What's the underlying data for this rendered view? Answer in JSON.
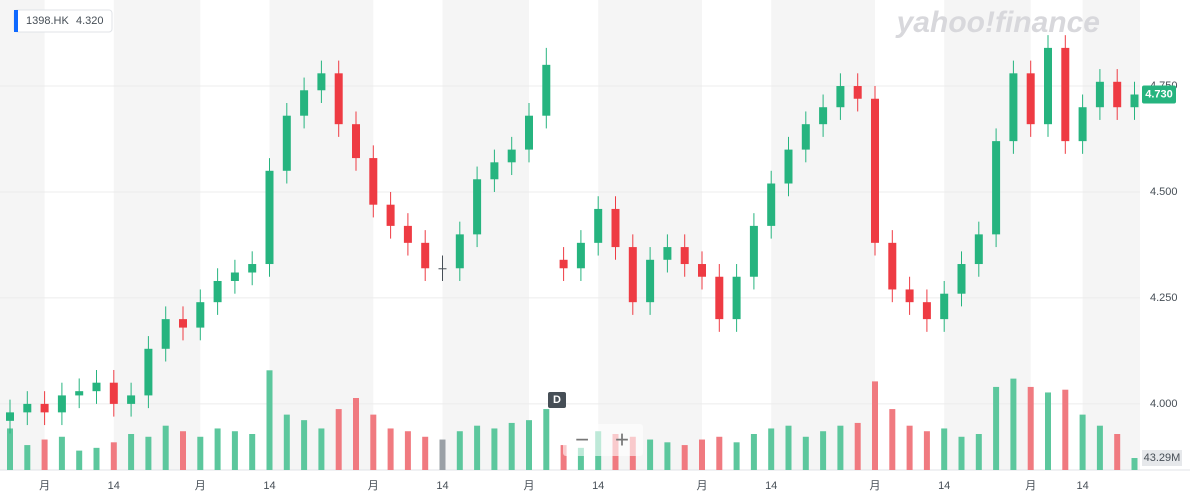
{
  "chart_data": {
    "type": "candlestick",
    "symbol": "1398.HK",
    "quote": {
      "value": 4.32,
      "label": "4.320"
    },
    "logo": "yahoo!finance",
    "interval": "D",
    "zoom_out": "−",
    "zoom_in": "+",
    "categories": [
      null,
      null,
      "月",
      null,
      null,
      null,
      "14",
      null,
      null,
      null,
      null,
      "月",
      null,
      null,
      null,
      "14",
      null,
      null,
      null,
      null,
      null,
      "月",
      null,
      null,
      null,
      "14",
      null,
      null,
      null,
      null,
      "月",
      null,
      null,
      null,
      "14",
      null,
      null,
      null,
      null,
      null,
      "月",
      null,
      null,
      null,
      "14",
      null,
      null,
      null,
      null,
      null,
      "月",
      null,
      null,
      null,
      "14",
      null,
      null,
      null,
      null,
      "月",
      null,
      null,
      "14",
      null,
      null,
      null
    ],
    "open": [
      3.96,
      3.98,
      4.0,
      3.98,
      4.02,
      4.03,
      4.05,
      4.0,
      4.02,
      4.13,
      4.2,
      4.18,
      4.24,
      4.29,
      4.31,
      4.33,
      4.55,
      4.68,
      4.74,
      4.78,
      4.66,
      4.58,
      4.47,
      4.42,
      4.38,
      4.32,
      4.32,
      4.4,
      4.53,
      4.57,
      4.6,
      4.68,
      4.34,
      4.32,
      4.38,
      4.46,
      4.37,
      4.24,
      4.34,
      4.37,
      4.33,
      4.3,
      4.2,
      4.3,
      4.42,
      4.52,
      4.6,
      4.66,
      4.7,
      4.75,
      4.72,
      4.38,
      4.27,
      4.24,
      4.2,
      4.26,
      4.33,
      4.4,
      4.62,
      4.78,
      4.66,
      4.84,
      4.62,
      4.7,
      4.76,
      4.7
    ],
    "high": [
      4.01,
      4.03,
      4.03,
      4.05,
      4.06,
      4.08,
      4.08,
      4.05,
      4.16,
      4.23,
      4.23,
      4.27,
      4.32,
      4.34,
      4.36,
      4.58,
      4.71,
      4.77,
      4.81,
      4.81,
      4.69,
      4.61,
      4.5,
      4.45,
      4.41,
      4.35,
      4.43,
      4.56,
      4.6,
      4.63,
      4.71,
      4.84,
      4.37,
      4.41,
      4.49,
      4.49,
      4.4,
      4.37,
      4.4,
      4.4,
      4.36,
      4.33,
      4.33,
      4.45,
      4.55,
      4.63,
      4.69,
      4.73,
      4.78,
      4.78,
      4.75,
      4.41,
      4.3,
      4.27,
      4.29,
      4.36,
      4.43,
      4.65,
      4.81,
      4.81,
      4.87,
      4.87,
      4.73,
      4.79,
      4.79,
      4.76
    ],
    "low": [
      3.93,
      3.95,
      3.95,
      3.95,
      3.99,
      4.0,
      3.97,
      3.97,
      3.99,
      4.1,
      4.15,
      4.15,
      4.21,
      4.26,
      4.28,
      4.3,
      4.52,
      4.65,
      4.71,
      4.63,
      4.55,
      4.44,
      4.39,
      4.35,
      4.29,
      4.29,
      4.29,
      4.37,
      4.5,
      4.54,
      4.57,
      4.65,
      4.29,
      4.29,
      4.35,
      4.34,
      4.21,
      4.21,
      4.31,
      4.3,
      4.27,
      4.17,
      4.17,
      4.27,
      4.39,
      4.49,
      4.57,
      4.63,
      4.67,
      4.69,
      4.35,
      4.24,
      4.21,
      4.17,
      4.17,
      4.23,
      4.3,
      4.37,
      4.59,
      4.63,
      4.63,
      4.59,
      4.59,
      4.67,
      4.67,
      4.67
    ],
    "close": [
      3.98,
      4.0,
      3.98,
      4.02,
      4.03,
      4.05,
      4.0,
      4.02,
      4.13,
      4.2,
      4.18,
      4.24,
      4.29,
      4.31,
      4.33,
      4.55,
      4.68,
      4.74,
      4.78,
      4.66,
      4.58,
      4.47,
      4.42,
      4.38,
      4.32,
      4.32,
      4.4,
      4.53,
      4.57,
      4.6,
      4.68,
      4.8,
      4.32,
      4.38,
      4.46,
      4.37,
      4.24,
      4.34,
      4.37,
      4.33,
      4.3,
      4.2,
      4.3,
      4.42,
      4.52,
      4.6,
      4.66,
      4.7,
      4.75,
      4.72,
      4.38,
      4.27,
      4.24,
      4.2,
      4.26,
      4.33,
      4.4,
      4.62,
      4.78,
      4.66,
      4.84,
      4.62,
      4.7,
      4.76,
      4.7,
      4.73
    ],
    "volume": [
      150,
      90,
      110,
      120,
      70,
      80,
      100,
      130,
      120,
      160,
      140,
      120,
      150,
      140,
      130,
      360,
      200,
      180,
      150,
      220,
      260,
      200,
      150,
      140,
      120,
      110,
      140,
      160,
      150,
      170,
      180,
      220,
      90,
      80,
      140,
      130,
      120,
      110,
      100,
      90,
      110,
      120,
      100,
      130,
      150,
      160,
      120,
      140,
      160,
      170,
      320,
      220,
      160,
      140,
      150,
      120,
      130,
      300,
      330,
      300,
      280,
      290,
      200,
      160,
      130,
      43.29
    ],
    "last_volume": {
      "value": 43.29,
      "label": "43.29M"
    },
    "last_price": {
      "value": 4.73,
      "label": "4.730"
    },
    "ylim": [
      3.844,
      4.953
    ],
    "yticks": [
      {
        "value": 4.0,
        "label": "4.000"
      },
      {
        "value": 4.25,
        "label": "4.250"
      },
      {
        "value": 4.5,
        "label": "4.500"
      },
      {
        "value": 4.75,
        "label": "4.750"
      }
    ],
    "volume_lim": [
      0,
      390
    ],
    "grid": true,
    "up_color": "#26b47f",
    "down_color": "#ee3b43",
    "flat_color": "#464e56"
  }
}
